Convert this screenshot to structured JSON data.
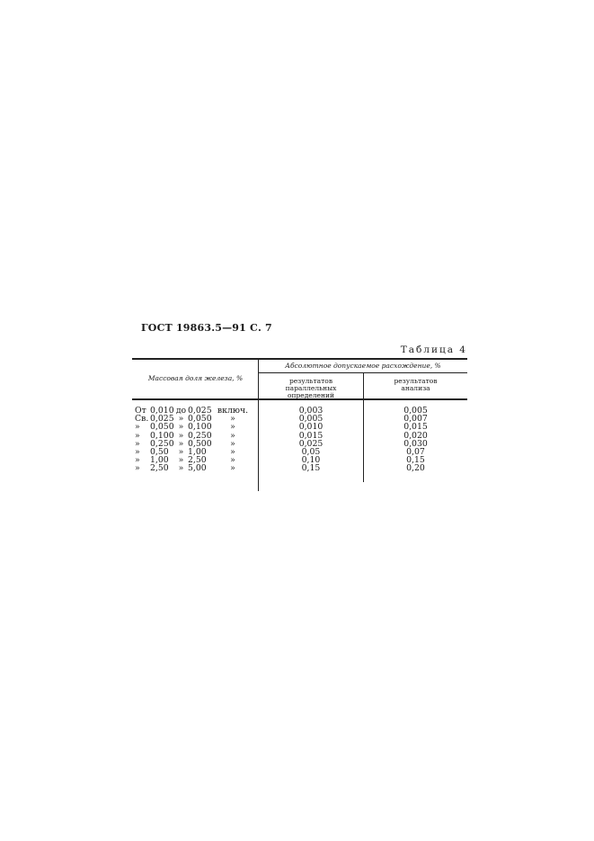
{
  "header": "ГОСТ 19863.5—91 С. 7",
  "table_number": "Таблица 4",
  "table": {
    "col1_header": "Массовая доля железа, %",
    "group_header": "Абсолютное допускаемое расхождение, %",
    "col2_header": "результатов параллельных определений",
    "col3_header": "результатов анализа",
    "rows": [
      {
        "prefix": "От",
        "from": "0,010",
        "mid": "до",
        "to": "0,025",
        "suffix": "включ.",
        "parallel": "0,003",
        "analysis": "0,005"
      },
      {
        "prefix": "Св.",
        "from": "0,025",
        "mid": "»",
        "to": "0,050",
        "suffix": "»",
        "parallel": "0,005",
        "analysis": "0,007"
      },
      {
        "prefix": "»",
        "from": "0,050",
        "mid": "»",
        "to": "0,100",
        "suffix": "»",
        "parallel": "0,010",
        "analysis": "0,015"
      },
      {
        "prefix": "»",
        "from": "0,100",
        "mid": "»",
        "to": "0,250",
        "suffix": "»",
        "parallel": "0,015",
        "analysis": "0,020"
      },
      {
        "prefix": "»",
        "from": "0,250",
        "mid": "»",
        "to": "0,500",
        "suffix": "»",
        "parallel": "0,025",
        "analysis": "0,030"
      },
      {
        "prefix": "»",
        "from": "0,50",
        "mid": "»",
        "to": "1,00",
        "suffix": "»",
        "parallel": "0,05",
        "analysis": "0,07"
      },
      {
        "prefix": "»",
        "from": "1,00",
        "mid": "»",
        "to": "2,50",
        "suffix": "»",
        "parallel": "0,10",
        "analysis": "0,15"
      },
      {
        "prefix": "»",
        "from": "2,50",
        "mid": "»",
        "to": "5,00",
        "suffix": "»",
        "parallel": "0,15",
        "analysis": "0,20"
      }
    ]
  }
}
